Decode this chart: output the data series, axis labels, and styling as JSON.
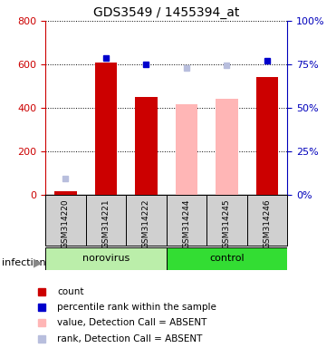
{
  "title": "GDS3549 / 1455394_at",
  "samples": [
    "GSM314220",
    "GSM314221",
    "GSM314222",
    "GSM314244",
    "GSM314245",
    "GSM314246"
  ],
  "count_values": [
    18,
    610,
    450,
    null,
    null,
    540
  ],
  "absent_count_values": [
    null,
    null,
    null,
    415,
    440,
    null
  ],
  "percentile_present": [
    null,
    630,
    600,
    null,
    null,
    615
  ],
  "percentile_absent": [
    75,
    null,
    null,
    585,
    597,
    null
  ],
  "ylim_left": [
    0,
    800
  ],
  "ylim_right": [
    0,
    100
  ],
  "yticks_left": [
    0,
    200,
    400,
    600,
    800
  ],
  "yticks_right": [
    0,
    25,
    50,
    75,
    100
  ],
  "left_axis_color": "#cc0000",
  "right_axis_color": "#0000bb",
  "count_color": "#cc0000",
  "rank_color": "#0000cc",
  "absent_value_color": "#ffb6b6",
  "absent_rank_color": "#b8bedd",
  "norovirus_bg": "#bbeeaa",
  "control_bg": "#33dd33",
  "sample_label_area_color": "#d0d0d0",
  "bar_width": 0.55,
  "title_fontsize": 10,
  "tick_fontsize": 8,
  "sample_fontsize": 6.5,
  "group_fontsize": 8,
  "legend_fontsize": 7.5
}
